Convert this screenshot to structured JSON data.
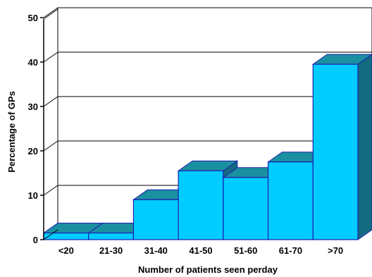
{
  "chart_data": {
    "type": "bar",
    "title": "",
    "xlabel": "Number of patients seen perday",
    "ylabel": "Percentage of GPs",
    "categories": [
      "<20",
      "21-30",
      "31-40",
      "41-50",
      "51-60",
      "61-70",
      ">70"
    ],
    "values": [
      1.5,
      1.5,
      9,
      15.5,
      14,
      17.5,
      39.5
    ],
    "ylim": [
      0,
      50
    ],
    "yticks": [
      0,
      10,
      20,
      30,
      40,
      50
    ],
    "grid": true,
    "legend": "none",
    "colors": {
      "bar_front": "#00CCFF",
      "bar_top": "#1A90A0",
      "bar_side": "#136B80",
      "bar_edge": "#1F1FB0"
    }
  }
}
